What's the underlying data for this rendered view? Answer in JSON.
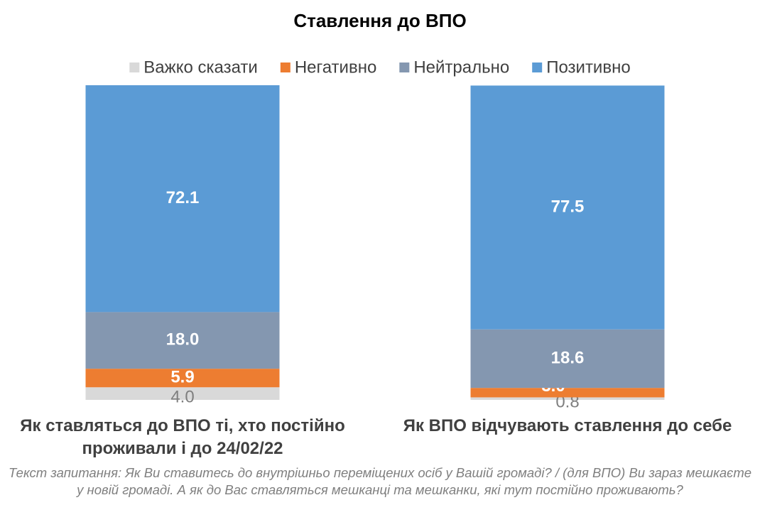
{
  "chart_data": {
    "type": "stacked_bar",
    "title": "Ставлення до ВПО",
    "categories": [
      "Як ставляться до ВПО ті, хто постійно проживали і до 24/02/22",
      "Як ВПО відчувають ставлення до себе"
    ],
    "series": [
      {
        "name": "Важко сказати",
        "color": "#d9d9d9",
        "label_color": "#7f7f7f",
        "values": [
          4.0,
          0.8
        ],
        "value_labels": [
          "4.0",
          "0.8"
        ]
      },
      {
        "name": "Негативно",
        "color": "#ed7d31",
        "label_color": "#ffffff",
        "values": [
          5.9,
          3.0
        ],
        "value_labels": [
          "5.9",
          "3.0"
        ]
      },
      {
        "name": "Нейтрально",
        "color": "#8497b0",
        "label_color": "#ffffff",
        "values": [
          18.0,
          18.6
        ],
        "value_labels": [
          "18.0",
          "18.6"
        ]
      },
      {
        "name": "Позитивно",
        "color": "#5b9bd5",
        "label_color": "#ffffff",
        "values": [
          72.1,
          77.5
        ],
        "value_labels": [
          "72.1",
          "77.5"
        ]
      }
    ],
    "ylim": [
      0,
      100
    ],
    "note": "Текст запитання: Як Ви ставитесь до внутрішньо переміщених осіб у Вашій громаді? /  (для ВПО) Ви зараз мешкаєте у новій громаді. А як до Вас ставляться мешканці та мешканки, які тут постійно проживають?"
  }
}
